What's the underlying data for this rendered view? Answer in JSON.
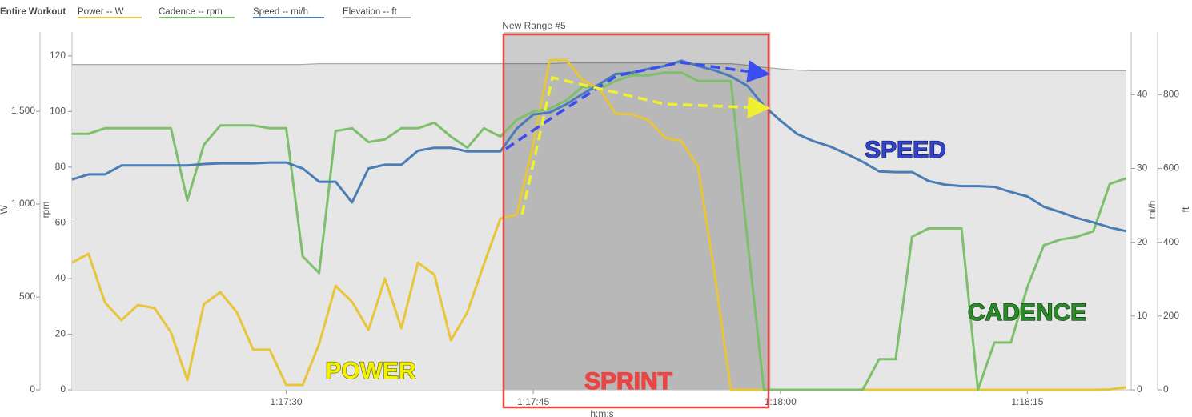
{
  "chart_data": {
    "type": "line",
    "legend": {
      "title": "Entire Workout",
      "position": "top-left"
    },
    "selection": {
      "label": "New Range #5",
      "start": 4663.2,
      "end": 4679.4,
      "color": "rgba(0,0,0,0.2)"
    },
    "x_label": "h:m:s",
    "xlim": [
      4637,
      4701.3
    ],
    "xticks": [
      {
        "value": 4650,
        "label": "1:17:30"
      },
      {
        "value": 4665,
        "label": "1:17:45"
      },
      {
        "value": 4680,
        "label": "1:18:00"
      },
      {
        "value": 4695,
        "label": "1:18:15"
      }
    ],
    "axes": [
      {
        "label": "W",
        "lim": [
          0,
          1927
        ],
        "ticks": [
          0,
          500,
          {
            "value": 1000,
            "label": "1,000"
          },
          {
            "value": 1500,
            "label": "1,500"
          }
        ]
      },
      {
        "label": "rpm",
        "lim": [
          0,
          128.6
        ],
        "ticks": [
          0,
          20,
          40,
          60,
          80,
          100,
          120
        ]
      },
      {
        "label": "mi/h",
        "lim": [
          0,
          48.5
        ],
        "ticks": [
          0,
          10,
          20,
          30,
          40
        ]
      },
      {
        "label": "ft",
        "lim": [
          0,
          970
        ],
        "ticks": [
          0,
          200,
          400,
          600,
          800
        ]
      }
    ],
    "x": [
      4637,
      4638,
      4639,
      4640,
      4641,
      4642,
      4643,
      4644,
      4645,
      4646,
      4647,
      4648,
      4649,
      4650,
      4651,
      4652,
      4653,
      4654,
      4655,
      4656,
      4657,
      4658,
      4659,
      4660,
      4661,
      4662,
      4663,
      4664,
      4665,
      4666,
      4667,
      4668,
      4669,
      4670,
      4671,
      4672,
      4673,
      4674,
      4675,
      4676,
      4677,
      4678,
      4679,
      4680,
      4681,
      4682,
      4683,
      4684,
      4685,
      4686,
      4687,
      4688,
      4689,
      4690,
      4691,
      4692,
      4693,
      4694,
      4695,
      4696,
      4697,
      4698,
      4699,
      4700,
      4701
    ],
    "series": [
      {
        "name": "Power -- W",
        "color": "#e8c53a",
        "axis": 0,
        "values": [
          685,
          733,
          470,
          375,
          457,
          440,
          310,
          52,
          461,
          526,
          418,
          216,
          216,
          26,
          26,
          246,
          560,
          474,
          323,
          599,
          332,
          685,
          620,
          267,
          418,
          677,
          922,
          944,
          1323,
          1776,
          1776,
          1668,
          1625,
          1487,
          1483,
          1452,
          1358,
          1340,
          1202,
          634,
          0,
          0,
          0,
          0,
          0,
          0,
          0,
          0,
          0,
          0,
          0,
          0,
          0,
          0,
          0,
          0,
          0,
          0,
          0,
          0,
          0,
          0,
          0,
          2,
          13
        ]
      },
      {
        "name": "Cadence -- rpm",
        "color": "#7dbf6a",
        "axis": 1,
        "values": [
          92,
          92,
          94,
          94,
          94,
          94,
          94,
          68,
          88,
          95,
          95,
          95,
          94,
          94,
          48,
          42,
          93,
          94,
          89,
          90,
          94,
          94,
          96,
          91,
          87,
          94,
          91,
          97,
          100,
          101,
          104,
          109,
          108,
          111,
          113,
          113,
          114,
          114,
          111,
          111,
          111,
          54,
          0,
          0,
          0,
          0,
          0,
          0,
          0,
          11,
          11,
          55,
          58,
          58,
          58,
          0,
          17,
          17,
          37,
          52,
          54,
          55,
          57,
          74,
          76
        ]
      },
      {
        "name": "Speed -- mi/h",
        "color": "#4a7db5",
        "axis": 2,
        "values": [
          28.5,
          29.2,
          29.2,
          30.4,
          30.4,
          30.4,
          30.4,
          30.4,
          30.6,
          30.7,
          30.7,
          30.7,
          30.8,
          30.8,
          30.0,
          28.2,
          28.2,
          25.4,
          30.0,
          30.5,
          30.5,
          32.4,
          32.8,
          32.8,
          32.3,
          32.3,
          32.3,
          35.4,
          37.3,
          37.6,
          38.7,
          40.1,
          41.4,
          42.8,
          43.0,
          43.5,
          43.9,
          44.6,
          43.9,
          43.3,
          42.5,
          41.2,
          38.5,
          36.5,
          34.7,
          33.7,
          33.0,
          32.0,
          30.9,
          29.6,
          29.5,
          29.5,
          28.3,
          27.8,
          27.6,
          27.6,
          27.5,
          26.8,
          26.2,
          24.8,
          24.1,
          23.3,
          22.7,
          22.0,
          21.5
        ]
      },
      {
        "name": "Elevation -- ft",
        "color": "#aaaaaa",
        "axis": 3,
        "type": "area",
        "values": [
          882,
          882,
          882,
          882,
          882,
          882,
          882,
          882,
          882,
          882,
          882,
          882,
          882,
          882,
          882,
          884,
          884,
          884,
          884,
          884,
          884,
          884,
          884,
          884,
          884,
          884,
          884,
          884,
          884,
          884,
          886,
          886,
          886,
          886,
          886,
          886,
          886,
          886,
          884,
          884,
          884,
          880,
          874,
          870,
          867,
          865,
          865,
          865,
          865,
          865,
          865,
          865,
          865,
          865,
          865,
          865,
          865,
          865,
          865,
          865,
          865,
          865,
          865,
          865,
          865
        ]
      }
    ],
    "annotations": [
      {
        "text": "SPEED",
        "color": "#3344cc",
        "outline": "#111a66"
      },
      {
        "text": "CADENCE",
        "color": "#2a8a2a",
        "outline": "#0d3d0d"
      },
      {
        "text": "POWER",
        "color": "#f2f200",
        "outline": "#6b6b00"
      },
      {
        "text": "SPRINT",
        "color": "#e84545",
        "outline": "#e84545"
      }
    ]
  }
}
